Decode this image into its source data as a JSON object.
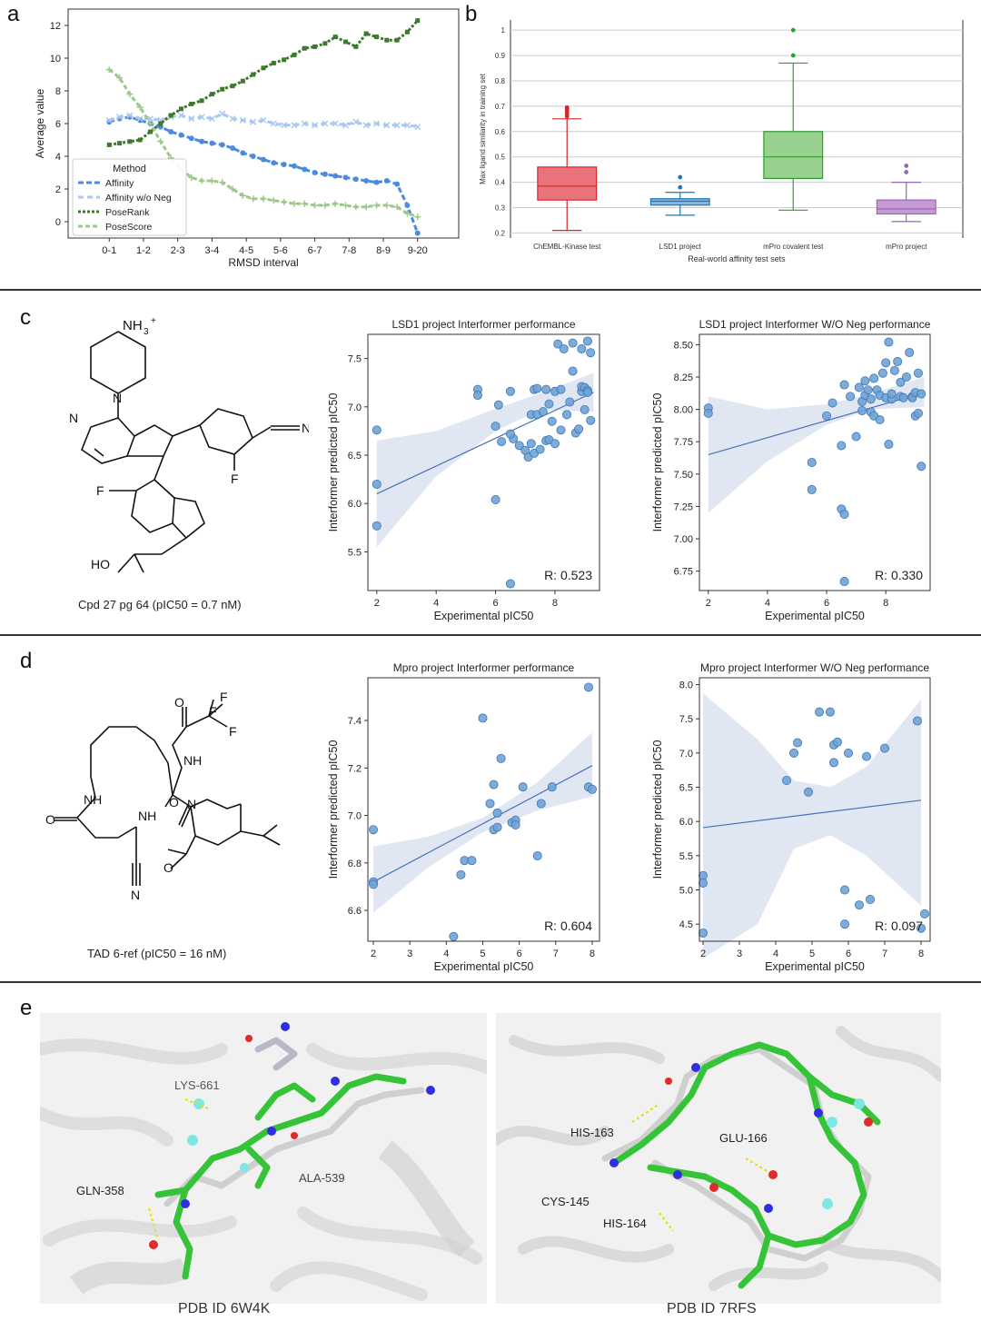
{
  "panels": {
    "a": "a",
    "b": "b",
    "c": "c",
    "d": "d",
    "e": "e"
  },
  "chart_data": [
    {
      "id": "a",
      "type": "line",
      "xlabel": "RMSD interval",
      "ylabel": "Average value",
      "categories": [
        "0-1",
        "1-2",
        "2-3",
        "3-4",
        "4-5",
        "5-6",
        "6-7",
        "7-8",
        "8-9",
        "9-20"
      ],
      "ylim": [
        -1,
        13
      ],
      "yticks": [
        0,
        2,
        4,
        6,
        8,
        10,
        12
      ],
      "legend": {
        "title": "Method",
        "placement": "lower-left"
      },
      "series": [
        {
          "name": "Affinity",
          "color": "#4a8be0",
          "marker": "o",
          "x": [
            0.0,
            0.3,
            0.6,
            0.9,
            1.2,
            1.5,
            1.8,
            2.1,
            2.4,
            2.7,
            3.0,
            3.3,
            3.6,
            3.9,
            4.2,
            4.5,
            4.8,
            5.1,
            5.4,
            5.7,
            6.0,
            6.3,
            6.6,
            6.9,
            7.2,
            7.5,
            7.8,
            8.1,
            8.4,
            8.7,
            9.0
          ],
          "y": [
            6.1,
            6.3,
            6.4,
            6.2,
            6.0,
            5.8,
            5.5,
            5.3,
            5.1,
            4.9,
            4.8,
            4.7,
            4.5,
            4.2,
            4.0,
            3.8,
            3.6,
            3.5,
            3.4,
            3.2,
            3.0,
            2.9,
            2.8,
            2.7,
            2.6,
            2.5,
            2.4,
            2.5,
            2.3,
            1.0,
            -0.7
          ]
        },
        {
          "name": "Affinity w/o Neg",
          "color": "#a9c8f0",
          "marker": "x",
          "x": [
            0.0,
            0.3,
            0.6,
            0.9,
            1.2,
            1.5,
            1.8,
            2.1,
            2.4,
            2.7,
            3.0,
            3.3,
            3.6,
            3.9,
            4.2,
            4.5,
            4.8,
            5.1,
            5.4,
            5.7,
            6.0,
            6.3,
            6.6,
            6.9,
            7.2,
            7.5,
            7.8,
            8.1,
            8.4,
            8.7,
            9.0
          ],
          "y": [
            6.2,
            6.4,
            6.5,
            6.3,
            6.3,
            6.2,
            6.4,
            6.5,
            6.3,
            6.4,
            6.3,
            6.6,
            6.3,
            6.2,
            6.1,
            6.2,
            6.0,
            5.9,
            5.9,
            6.0,
            5.9,
            6.0,
            6.0,
            5.9,
            6.1,
            5.9,
            6.0,
            5.9,
            5.9,
            5.9,
            5.8
          ]
        },
        {
          "name": "PoseRank",
          "color": "#3d7a2c",
          "marker": "s",
          "x": [
            0.0,
            0.3,
            0.6,
            0.9,
            1.2,
            1.5,
            1.8,
            2.1,
            2.4,
            2.7,
            3.0,
            3.3,
            3.6,
            3.9,
            4.2,
            4.5,
            4.8,
            5.1,
            5.4,
            5.7,
            6.0,
            6.3,
            6.6,
            6.9,
            7.2,
            7.5,
            7.8,
            8.1,
            8.4,
            8.7,
            9.0
          ],
          "y": [
            4.7,
            4.8,
            4.9,
            5.0,
            5.5,
            6.0,
            6.5,
            6.9,
            7.2,
            7.4,
            7.8,
            8.1,
            8.3,
            8.6,
            9.0,
            9.4,
            9.7,
            9.9,
            10.2,
            10.6,
            10.7,
            10.9,
            11.3,
            11.0,
            10.7,
            11.5,
            11.3,
            11.1,
            11.1,
            11.6,
            12.3
          ]
        },
        {
          "name": "PoseScore",
          "color": "#9cc98a",
          "marker": "+",
          "x": [
            0.0,
            0.3,
            0.6,
            0.9,
            1.2,
            1.5,
            1.8,
            2.1,
            2.4,
            2.7,
            3.0,
            3.3,
            3.6,
            3.9,
            4.2,
            4.5,
            4.8,
            5.1,
            5.4,
            5.7,
            6.0,
            6.3,
            6.6,
            6.9,
            7.2,
            7.5,
            7.8,
            8.1,
            8.4,
            8.7,
            9.0
          ],
          "y": [
            9.3,
            8.8,
            7.8,
            7.0,
            6.0,
            4.9,
            3.9,
            3.2,
            2.7,
            2.5,
            2.5,
            2.4,
            2.0,
            1.6,
            1.4,
            1.4,
            1.3,
            1.2,
            1.1,
            1.1,
            1.0,
            1.0,
            1.1,
            1.0,
            0.9,
            0.9,
            1.0,
            1.0,
            0.9,
            0.5,
            0.3
          ]
        }
      ]
    },
    {
      "id": "b",
      "type": "box",
      "xlabel": "Real-world affinity test sets",
      "ylabel": "Max ligand similarity in training set",
      "ylim": [
        0.18,
        1.04
      ],
      "yticks": [
        0.2,
        0.3,
        0.4,
        0.5,
        0.6,
        0.7,
        0.8,
        0.9,
        1
      ],
      "boxes": [
        {
          "label": "ChEMBL-Kinase test",
          "color": "#e8737a",
          "edge": "#d62728",
          "min": 0.21,
          "q1": 0.33,
          "median": 0.385,
          "q3": 0.46,
          "max": 0.65,
          "outliers": [
            0.66,
            0.67,
            0.68,
            0.69,
            0.695
          ]
        },
        {
          "label": "LSD1 project",
          "color": "#89b6dc",
          "edge": "#1f77b4",
          "min": 0.27,
          "q1": 0.31,
          "median": 0.325,
          "q3": 0.335,
          "max": 0.36,
          "outliers": [
            0.38,
            0.42
          ]
        },
        {
          "label": "mPro covalent test",
          "color": "#98d18f",
          "edge": "#2ca02c",
          "min": 0.29,
          "q1": 0.415,
          "median": 0.5,
          "q3": 0.6,
          "max": 0.87,
          "outliers": [
            0.9,
            1.0
          ]
        },
        {
          "label": "mPro project",
          "color": "#c79bd1",
          "edge": "#9467bd",
          "min": 0.245,
          "q1": 0.275,
          "median": 0.295,
          "q3": 0.33,
          "max": 0.4,
          "outliers": [
            0.44,
            0.465
          ]
        }
      ]
    },
    {
      "id": "c1",
      "type": "scatter",
      "title": "LSD1 project Interformer performance",
      "xlabel": "Experimental pIC50",
      "ylabel": "Interformer predicted pIC50",
      "annotation": "R: 0.523",
      "xlim": [
        1.7,
        9.5
      ],
      "ylim": [
        5.1,
        7.75
      ],
      "xticks": [
        2,
        4,
        6,
        8
      ],
      "yticks": [
        5.5,
        6.0,
        6.5,
        7.0,
        7.5
      ],
      "fit": {
        "x0": 2.0,
        "y0": 6.1,
        "x1": 9.3,
        "y1": 7.15
      },
      "ci_upper": [
        [
          2.0,
          6.65
        ],
        [
          4,
          6.75
        ],
        [
          6,
          6.98
        ],
        [
          7.5,
          7.14
        ],
        [
          9.3,
          7.35
        ]
      ],
      "ci_lower": [
        [
          2.0,
          5.55
        ],
        [
          4,
          6.28
        ],
        [
          6,
          6.75
        ],
        [
          7.5,
          6.97
        ],
        [
          9.3,
          6.95
        ]
      ],
      "x": [
        2.0,
        2.0,
        2.0,
        5.4,
        5.4,
        6.0,
        6.0,
        6.1,
        6.2,
        6.5,
        6.6,
        6.5,
        6.8,
        7.0,
        7.1,
        7.2,
        7.2,
        7.3,
        7.3,
        7.4,
        7.4,
        7.5,
        7.6,
        7.7,
        7.7,
        7.8,
        7.8,
        7.9,
        8.0,
        8.0,
        8.1,
        8.2,
        8.2,
        8.3,
        8.4,
        8.5,
        8.6,
        8.6,
        8.7,
        8.8,
        8.9,
        8.9,
        8.9,
        9.0,
        9.0,
        9.1,
        9.1,
        9.1,
        9.2,
        9.2,
        6.5
      ],
      "y": [
        6.76,
        6.2,
        5.77,
        7.18,
        7.12,
        6.8,
        6.04,
        7.02,
        6.64,
        7.16,
        6.67,
        6.72,
        6.6,
        6.55,
        6.48,
        6.62,
        6.92,
        7.18,
        6.52,
        7.19,
        6.92,
        6.56,
        6.95,
        6.65,
        7.18,
        6.66,
        7.03,
        6.85,
        6.62,
        7.16,
        7.65,
        6.76,
        7.18,
        7.6,
        6.92,
        7.05,
        7.37,
        7.66,
        6.73,
        6.77,
        7.16,
        7.6,
        7.21,
        7.2,
        6.97,
        7.68,
        7.17,
        7.15,
        6.86,
        7.56,
        5.17
      ]
    },
    {
      "id": "c2",
      "type": "scatter",
      "title": "LSD1 project Interformer W/O Neg performance",
      "xlabel": "Experimental pIC50",
      "ylabel": "Interformer predicted pIC50",
      "annotation": "R: 0.330",
      "xlim": [
        1.7,
        9.5
      ],
      "ylim": [
        6.6,
        8.58
      ],
      "xticks": [
        2,
        4,
        6,
        8
      ],
      "yticks": [
        6.75,
        7.0,
        7.25,
        7.5,
        7.75,
        8.0,
        8.25,
        8.5
      ],
      "fit": {
        "x0": 2.0,
        "y0": 7.65,
        "x1": 9.3,
        "y1": 8.13
      },
      "ci_upper": [
        [
          2.0,
          8.1
        ],
        [
          4,
          8.0
        ],
        [
          6,
          8.04
        ],
        [
          7.5,
          8.12
        ],
        [
          9.3,
          8.25
        ]
      ],
      "ci_lower": [
        [
          2.0,
          7.2
        ],
        [
          4,
          7.6
        ],
        [
          6,
          7.88
        ],
        [
          7.5,
          8.0
        ],
        [
          9.3,
          8.02
        ]
      ],
      "x": [
        2.0,
        2.0,
        5.5,
        5.5,
        6.0,
        6.2,
        6.5,
        6.5,
        6.6,
        6.6,
        6.8,
        7.0,
        7.1,
        7.2,
        7.2,
        7.3,
        7.3,
        7.4,
        7.5,
        7.5,
        7.6,
        7.6,
        7.7,
        7.8,
        7.8,
        7.9,
        8.0,
        8.0,
        8.1,
        8.1,
        8.2,
        8.2,
        8.3,
        8.4,
        8.5,
        8.5,
        8.6,
        8.7,
        8.8,
        8.9,
        8.9,
        9.0,
        9.0,
        9.1,
        9.1,
        9.2,
        9.2,
        6.6
      ],
      "y": [
        8.01,
        7.97,
        7.59,
        7.38,
        7.95,
        8.05,
        7.72,
        7.23,
        8.19,
        7.19,
        8.1,
        7.79,
        8.17,
        7.99,
        8.06,
        8.22,
        8.11,
        8.15,
        7.98,
        8.08,
        8.24,
        7.95,
        8.15,
        7.92,
        8.11,
        8.28,
        8.36,
        8.09,
        7.73,
        8.52,
        8.08,
        8.12,
        8.3,
        8.37,
        8.21,
        8.1,
        8.09,
        8.25,
        8.44,
        8.1,
        8.09,
        7.95,
        8.13,
        8.28,
        7.97,
        7.56,
        8.12,
        6.67
      ]
    },
    {
      "id": "d1",
      "type": "scatter",
      "title": "Mpro project Interformer performance",
      "xlabel": "Experimental pIC50",
      "ylabel": "Interformer predicted pIC50",
      "annotation": "R: 0.604",
      "xlim": [
        1.85,
        8.2
      ],
      "ylim": [
        6.47,
        7.58
      ],
      "xticks": [
        2,
        3,
        4,
        5,
        6,
        7,
        8
      ],
      "yticks": [
        6.6,
        6.8,
        7.0,
        7.2,
        7.4
      ],
      "fit": {
        "x0": 2.0,
        "y0": 6.72,
        "x1": 8.0,
        "y1": 7.21
      },
      "ci_upper": [
        [
          2.0,
          6.87
        ],
        [
          3.5,
          6.91
        ],
        [
          5.0,
          6.99
        ],
        [
          6.5,
          7.14
        ],
        [
          8.0,
          7.35
        ]
      ],
      "ci_lower": [
        [
          2.0,
          6.59
        ],
        [
          3.5,
          6.78
        ],
        [
          5.0,
          6.93
        ],
        [
          6.5,
          7.02
        ],
        [
          8.0,
          7.08
        ]
      ],
      "x": [
        2.0,
        2.0,
        2.0,
        4.2,
        4.4,
        4.5,
        4.7,
        5.0,
        5.2,
        5.3,
        5.3,
        5.4,
        5.5,
        5.8,
        5.9,
        5.9,
        6.1,
        6.5,
        6.6,
        6.9,
        7.9,
        7.9,
        8.0,
        5.4
      ],
      "y": [
        6.94,
        6.72,
        6.71,
        6.49,
        6.75,
        6.81,
        6.81,
        7.41,
        7.05,
        7.13,
        6.94,
        6.95,
        7.24,
        6.97,
        6.98,
        6.96,
        7.12,
        6.83,
        7.05,
        7.12,
        7.54,
        7.12,
        7.11,
        7.01
      ]
    },
    {
      "id": "d2",
      "type": "scatter",
      "title": "Mpro project Interformer W/O Neg performance",
      "xlabel": "Experimental pIC50",
      "ylabel": "Interformer predicted pIC50",
      "annotation": "R: 0.097",
      "xlim": [
        1.9,
        8.25
      ],
      "ylim": [
        4.25,
        8.1
      ],
      "xticks": [
        2,
        3,
        4,
        5,
        6,
        7,
        8
      ],
      "yticks": [
        4.5,
        5.0,
        5.5,
        6.0,
        6.5,
        7.0,
        7.5,
        8.0
      ],
      "fit": {
        "x0": 2.0,
        "y0": 5.91,
        "x1": 8.0,
        "y1": 6.31
      },
      "ci_upper": [
        [
          2.0,
          7.87
        ],
        [
          3.5,
          7.2
        ],
        [
          4.5,
          6.6
        ],
        [
          5.5,
          6.5
        ],
        [
          6.5,
          6.8
        ],
        [
          8.0,
          7.78
        ]
      ],
      "ci_lower": [
        [
          2.0,
          4.0
        ],
        [
          3.5,
          4.5
        ],
        [
          4.5,
          5.6
        ],
        [
          5.5,
          5.8
        ],
        [
          6.5,
          5.5
        ],
        [
          8.0,
          4.77
        ]
      ],
      "x": [
        2.0,
        2.0,
        2.0,
        4.3,
        4.5,
        4.6,
        4.9,
        5.2,
        5.5,
        5.6,
        5.6,
        5.7,
        5.9,
        5.9,
        6.0,
        6.3,
        6.5,
        6.6,
        7.0,
        7.9,
        8.0,
        8.1
      ],
      "y": [
        5.21,
        5.1,
        4.37,
        6.6,
        7.0,
        7.15,
        6.43,
        7.6,
        7.6,
        7.12,
        6.86,
        7.16,
        4.5,
        5.0,
        7.0,
        4.78,
        6.95,
        4.86,
        7.07,
        7.47,
        4.44,
        4.65
      ]
    }
  ],
  "structures": {
    "c_caption": "Cpd 27 pg 64 (pIC50 = 0.7 nM)",
    "d_caption": "TAD 6-ref (pIC50 = 16 nM)",
    "atoms": {
      "n": "N",
      "nh3": "NH",
      "plus": "+",
      "three": "3",
      "f": "F",
      "ho": "HO",
      "nh": "NH",
      "o": "O",
      "cn_n": "N"
    }
  },
  "panel_e": {
    "left_caption": "PDB ID 6W4K",
    "right_caption": "PDB ID 7RFS",
    "left_labels": [
      "LYS-661",
      "GLN-358",
      "ALA-539"
    ],
    "right_labels": [
      "HIS-163",
      "GLU-166",
      "CYS-145",
      "HIS-164"
    ]
  }
}
